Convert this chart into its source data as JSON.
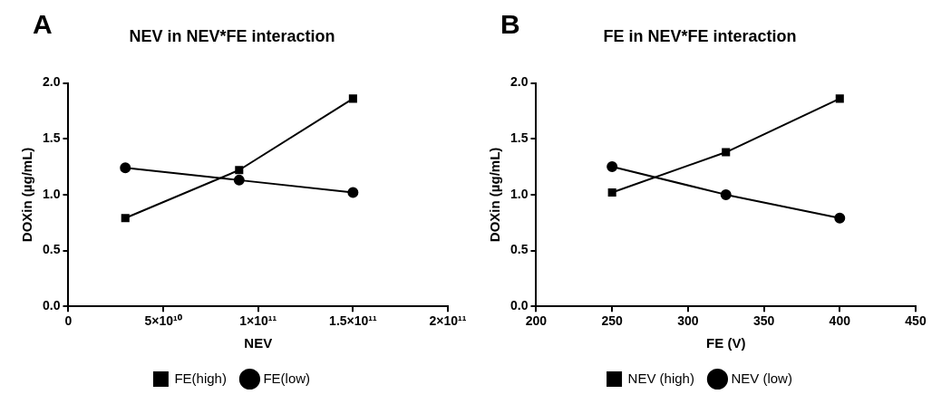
{
  "chart_data": [
    {
      "type": "line",
      "title": "NEV in NEV*FE interaction",
      "annotations": [
        "A"
      ],
      "xlabel": "NEV",
      "ylabel": "DOXin (µg/mL)",
      "xlim": [
        0,
        200000000000
      ],
      "xticks": [
        0,
        {
          "value": 50000000000,
          "label": "5×10¹⁰"
        },
        {
          "value": 100000000000,
          "label": "1×10¹¹"
        },
        {
          "value": 150000000000,
          "label": "1.5×10¹¹"
        },
        {
          "value": 200000000000,
          "label": "2×10¹¹"
        }
      ],
      "ylim": [
        0,
        2
      ],
      "yticks": [
        {
          "value": 0,
          "label": "0.0"
        },
        {
          "value": 0.5,
          "label": "0.5"
        },
        {
          "value": 1,
          "label": "1.0"
        },
        {
          "value": 1.5,
          "label": "1.5"
        },
        {
          "value": 2,
          "label": "2.0"
        }
      ],
      "grid": false,
      "legend": "bottom",
      "x": [
        30000000000,
        90000000000,
        150000000000
      ],
      "series": [
        {
          "name": "FE(high)",
          "color": "#000000",
          "marker": "square",
          "values": [
            0.79,
            1.22,
            1.86
          ]
        },
        {
          "name": "FE(low)",
          "color": "#000000",
          "marker": "circle",
          "values": [
            1.24,
            1.13,
            1.02
          ]
        }
      ]
    },
    {
      "type": "line",
      "title": "FE in NEV*FE interaction",
      "annotations": [
        "B"
      ],
      "xlabel": "FE (V)",
      "ylabel": "DOXin (µg/mL)",
      "xlim": [
        200,
        450
      ],
      "xticks": [
        200,
        250,
        300,
        350,
        400,
        450
      ],
      "ylim": [
        0,
        2
      ],
      "yticks": [
        {
          "value": 0,
          "label": "0.0"
        },
        {
          "value": 0.5,
          "label": "0.5"
        },
        {
          "value": 1,
          "label": "1.0"
        },
        {
          "value": 1.5,
          "label": "1.5"
        },
        {
          "value": 2,
          "label": "2.0"
        }
      ],
      "grid": false,
      "legend": "bottom",
      "x": [
        250,
        325,
        400
      ],
      "series": [
        {
          "name": "NEV (high)",
          "color": "#000000",
          "marker": "square",
          "values": [
            1.02,
            1.38,
            1.86
          ]
        },
        {
          "name": "NEV (low)",
          "color": "#000000",
          "marker": "circle",
          "values": [
            1.25,
            1.0,
            0.79
          ]
        }
      ]
    }
  ]
}
